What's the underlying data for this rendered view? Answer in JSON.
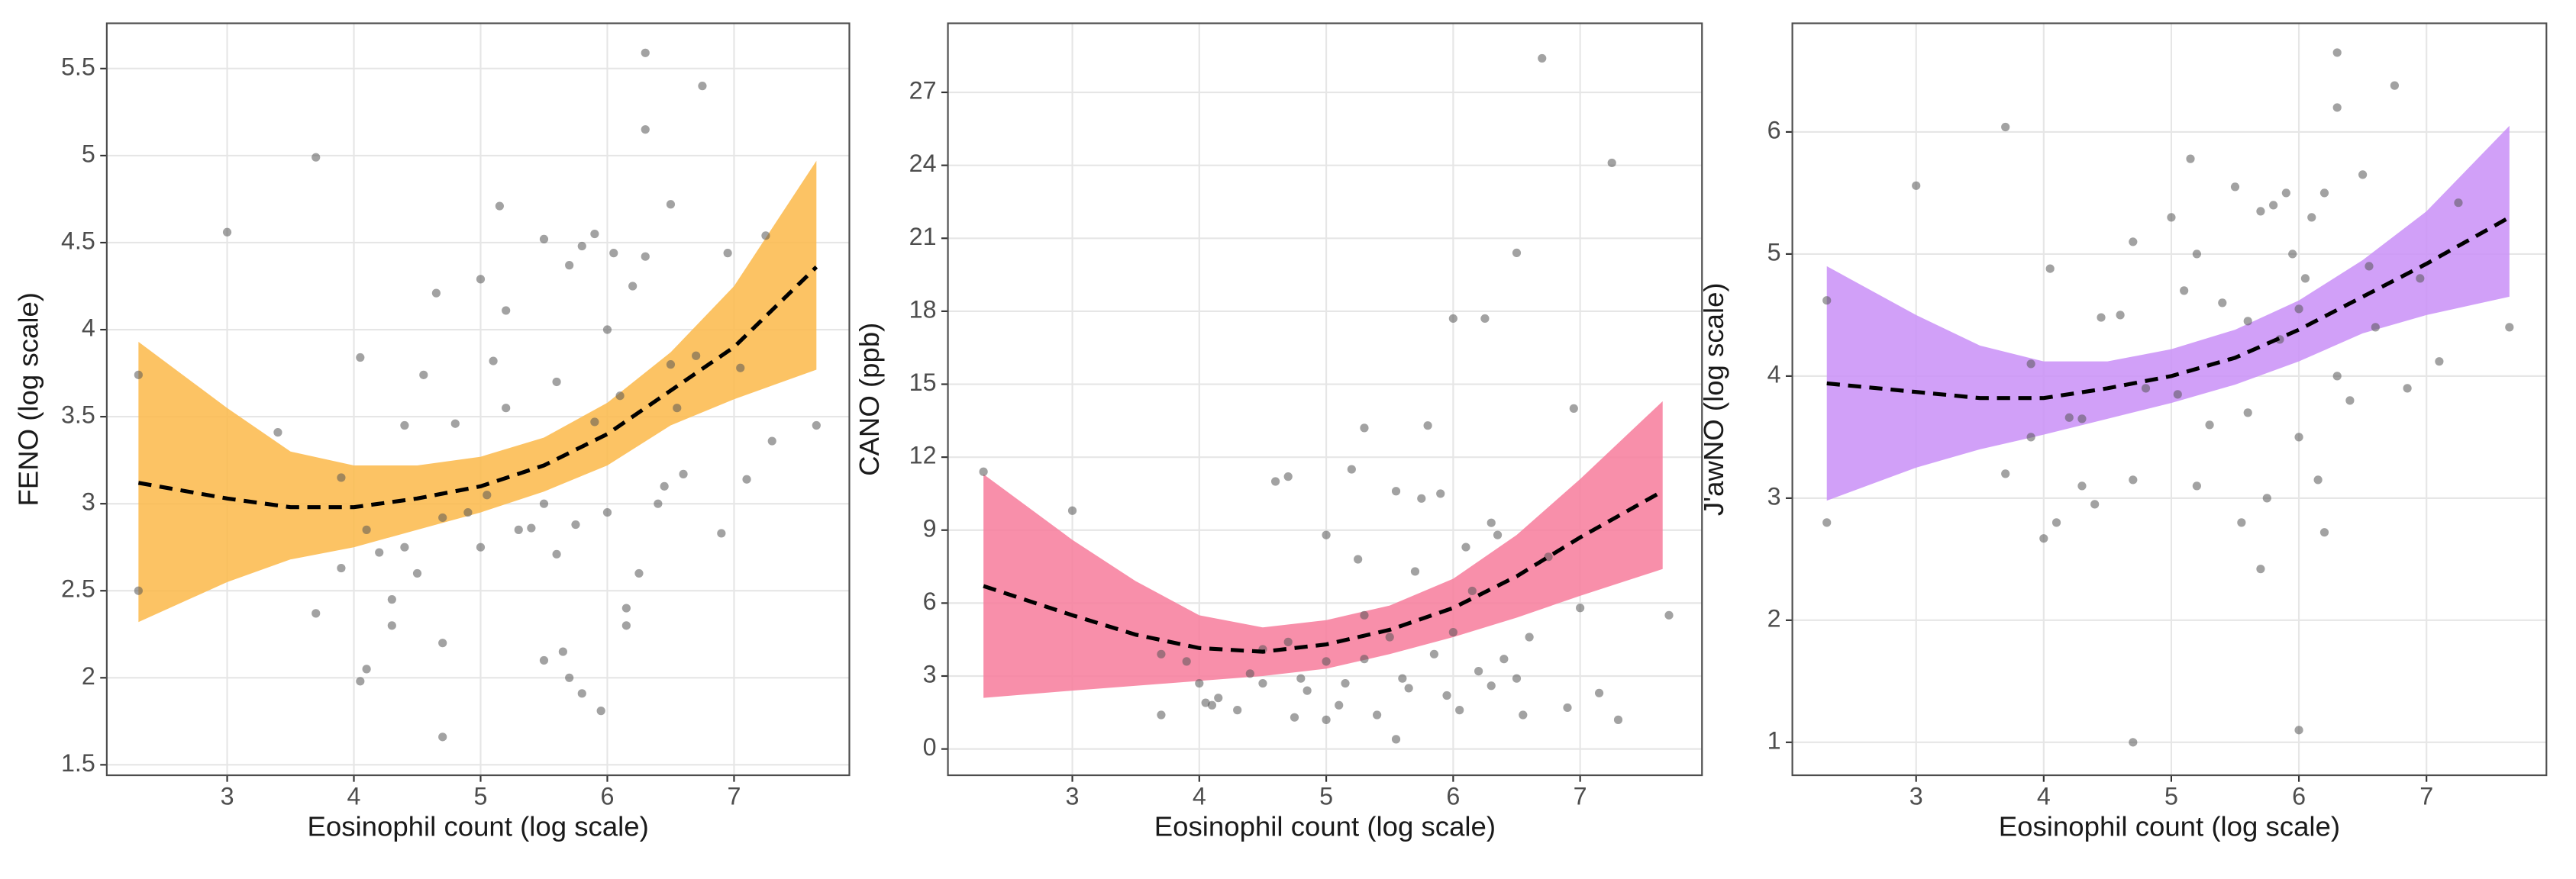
{
  "chart_data": [
    {
      "type": "scatter",
      "xlabel": "Eosinophil count (log scale)",
      "ylabel": "FENO (log scale)",
      "xlim": [
        2.05,
        7.91
      ],
      "ylim": [
        1.44,
        5.76
      ],
      "xticks": [
        3,
        4,
        5,
        6,
        7
      ],
      "yticks": [
        1.5,
        2.0,
        2.5,
        3.0,
        3.5,
        4.0,
        4.5,
        5.0,
        5.5
      ],
      "grid": true,
      "points": {
        "color": "#555555",
        "x": [
          2.3,
          2.3,
          3,
          3.7,
          3.7,
          3.4,
          3.9,
          3.9,
          4.05,
          4.1,
          4.05,
          4.1,
          4.2,
          4.3,
          4.3,
          4.4,
          4.4,
          4.5,
          4.55,
          4.65,
          4.7,
          4.7,
          4.7,
          4.8,
          5,
          5,
          5.05,
          5.1,
          5.15,
          5.2,
          5.2,
          5.3,
          5.4,
          5.5,
          5.5,
          5.6,
          5.6,
          5.7,
          5.7,
          5.75,
          5.8,
          5.9,
          5.9,
          5.95,
          6,
          6.05,
          6.1,
          6.15,
          6.15,
          6.2,
          6.25,
          6.3,
          6.3,
          6.3,
          6.4,
          6.45,
          6.5,
          6.5,
          6.55,
          6.6,
          6.7,
          6.75,
          6.9,
          6.95,
          7.05,
          7.1,
          7.25,
          7.3,
          7.65,
          5.8,
          5.65,
          6.0,
          4.9,
          5.5
        ],
        "y": [
          3.74,
          2.5,
          4.56,
          4.99,
          2.37,
          3.41,
          3.15,
          2.63,
          3.84,
          2.05,
          1.98,
          2.85,
          2.72,
          2.3,
          2.45,
          2.75,
          3.45,
          2.6,
          3.74,
          4.21,
          2.2,
          1.66,
          2.92,
          3.46,
          4.29,
          2.75,
          3.05,
          3.82,
          4.71,
          4.11,
          3.55,
          2.85,
          2.86,
          4.52,
          2.1,
          3.7,
          2.71,
          2.0,
          4.37,
          2.88,
          4.48,
          4.55,
          3.47,
          1.81,
          2.95,
          4.44,
          3.62,
          2.4,
          2.3,
          4.25,
          2.6,
          5.59,
          5.15,
          4.42,
          3.0,
          3.1,
          4.72,
          3.8,
          3.55,
          3.17,
          3.85,
          5.4,
          2.83,
          4.44,
          3.78,
          3.14,
          4.54,
          3.36,
          3.45,
          1.91,
          2.15,
          4.0,
          2.95,
          3.0
        ]
      },
      "fit": {
        "color": "#000000",
        "band_color": "#fbb949",
        "x": [
          2.3,
          3,
          3.5,
          4,
          4.5,
          5,
          5.5,
          6,
          6.5,
          7,
          7.65
        ],
        "y": [
          3.12,
          3.03,
          2.98,
          2.98,
          3.03,
          3.1,
          3.22,
          3.4,
          3.65,
          3.9,
          4.36
        ],
        "lower": [
          2.32,
          2.55,
          2.68,
          2.75,
          2.85,
          2.95,
          3.07,
          3.22,
          3.45,
          3.6,
          3.77
        ],
        "upper": [
          3.93,
          3.55,
          3.3,
          3.22,
          3.22,
          3.27,
          3.38,
          3.58,
          3.87,
          4.25,
          4.97
        ]
      }
    },
    {
      "type": "scatter",
      "xlabel": "Eosinophil count (log scale)",
      "ylabel": "CANO (ppb)",
      "xlim": [
        2.02,
        7.96
      ],
      "ylim": [
        -1.08,
        29.84
      ],
      "xticks": [
        3,
        4,
        5,
        6,
        7
      ],
      "yticks": [
        0,
        3,
        6,
        9,
        12,
        15,
        18,
        21,
        24,
        27
      ],
      "grid": true,
      "points": {
        "color": "#555555",
        "x": [
          2.3,
          3,
          3.7,
          3.7,
          3.9,
          4,
          4.05,
          4.1,
          4.15,
          4.3,
          4.4,
          4.5,
          4.6,
          4.7,
          4.7,
          4.75,
          4.8,
          4.85,
          5,
          5,
          5.1,
          5.15,
          5.2,
          5.25,
          5.3,
          5.3,
          5.4,
          5.5,
          5.55,
          5.55,
          5.6,
          5.65,
          5.7,
          5.75,
          5.8,
          5.85,
          5.9,
          5.95,
          6,
          6,
          6.05,
          6.1,
          6.2,
          6.25,
          6.3,
          6.3,
          6.4,
          6.5,
          6.5,
          6.55,
          6.6,
          6.7,
          6.75,
          6.9,
          6.95,
          7.0,
          7.15,
          7.25,
          7.3,
          7.7,
          5.3,
          5.0,
          4.5,
          6.35,
          6.15
        ],
        "y": [
          11.4,
          9.8,
          3.9,
          1.4,
          3.6,
          2.7,
          1.9,
          1.8,
          2.1,
          1.6,
          3.1,
          2.7,
          11.0,
          11.2,
          4.4,
          1.3,
          2.9,
          2.4,
          8.8,
          3.6,
          1.8,
          2.7,
          11.5,
          7.8,
          13.2,
          3.7,
          1.4,
          4.6,
          10.6,
          0.4,
          2.9,
          2.5,
          7.3,
          10.3,
          13.3,
          3.9,
          10.5,
          2.2,
          17.7,
          4.8,
          1.6,
          8.3,
          3.2,
          17.7,
          9.3,
          2.6,
          3.7,
          20.4,
          2.9,
          1.4,
          4.6,
          28.4,
          7.9,
          1.7,
          14.0,
          5.8,
          2.3,
          24.1,
          1.2,
          5.5,
          5.5,
          1.2,
          4.1,
          8.8,
          6.5
        ]
      },
      "fit": {
        "color": "#000000",
        "band_color": "#f77b9b",
        "x": [
          2.3,
          3,
          3.5,
          4,
          4.5,
          5,
          5.5,
          6,
          6.5,
          7,
          7.65
        ],
        "y": [
          6.7,
          5.5,
          4.7,
          4.15,
          4.0,
          4.3,
          4.9,
          5.8,
          7.1,
          8.7,
          10.6
        ],
        "lower": [
          2.1,
          2.4,
          2.6,
          2.8,
          3.0,
          3.3,
          3.9,
          4.6,
          5.4,
          6.3,
          7.4
        ],
        "upper": [
          11.3,
          8.6,
          6.9,
          5.5,
          5.0,
          5.3,
          5.9,
          7.0,
          8.8,
          11.1,
          14.3
        ]
      }
    },
    {
      "type": "scatter",
      "xlabel": "Eosinophil count (log scale)",
      "ylabel": "J'awNO (log scale)",
      "xlim": [
        2.03,
        7.94
      ],
      "ylim": [
        0.73,
        6.89
      ],
      "xticks": [
        3,
        4,
        5,
        6,
        7
      ],
      "yticks": [
        1,
        2,
        3,
        4,
        5,
        6
      ],
      "grid": true,
      "points": {
        "color": "#555555",
        "x": [
          2.3,
          2.3,
          3,
          3.7,
          3.7,
          3.9,
          3.9,
          4,
          4.05,
          4.1,
          4.2,
          4.3,
          4.4,
          4.45,
          4.6,
          4.7,
          4.7,
          4.7,
          4.8,
          5,
          5.05,
          5.1,
          5.15,
          5.2,
          5.2,
          5.3,
          5.4,
          5.5,
          5.55,
          5.6,
          5.7,
          5.7,
          5.75,
          5.8,
          5.85,
          5.9,
          5.95,
          6,
          6,
          6.05,
          6.1,
          6.15,
          6.2,
          6.3,
          6.3,
          6.3,
          6.4,
          6.5,
          6.55,
          6.6,
          6.75,
          6.85,
          6.95,
          7.1,
          7.25,
          7.65,
          6.2,
          5.6,
          4.3,
          6.0
        ],
        "y": [
          4.62,
          2.8,
          5.56,
          6.04,
          3.2,
          4.1,
          3.5,
          2.67,
          4.88,
          2.8,
          3.66,
          3.1,
          2.95,
          4.48,
          4.5,
          3.15,
          1.0,
          5.1,
          3.9,
          5.3,
          3.85,
          4.7,
          5.78,
          3.1,
          5.0,
          3.6,
          4.6,
          5.55,
          2.8,
          4.45,
          2.42,
          5.35,
          3.0,
          5.4,
          4.3,
          5.5,
          5.0,
          1.1,
          3.5,
          4.8,
          5.3,
          3.15,
          5.5,
          6.65,
          6.2,
          4.0,
          3.8,
          5.65,
          4.9,
          4.4,
          6.38,
          3.9,
          4.8,
          4.12,
          5.42,
          4.4,
          2.72,
          3.7,
          3.65,
          4.55
        ]
      },
      "fit": {
        "color": "#000000",
        "band_color": "#c98ff7",
        "x": [
          2.3,
          3,
          3.5,
          4,
          4.5,
          5,
          5.5,
          6,
          6.5,
          7,
          7.65
        ],
        "y": [
          3.94,
          3.87,
          3.82,
          3.82,
          3.9,
          4.0,
          4.15,
          4.38,
          4.65,
          4.92,
          5.3
        ],
        "lower": [
          2.98,
          3.25,
          3.4,
          3.52,
          3.65,
          3.78,
          3.93,
          4.12,
          4.35,
          4.5,
          4.65
        ],
        "upper": [
          4.9,
          4.5,
          4.25,
          4.12,
          4.12,
          4.22,
          4.38,
          4.62,
          4.95,
          5.35,
          6.05
        ]
      }
    }
  ]
}
